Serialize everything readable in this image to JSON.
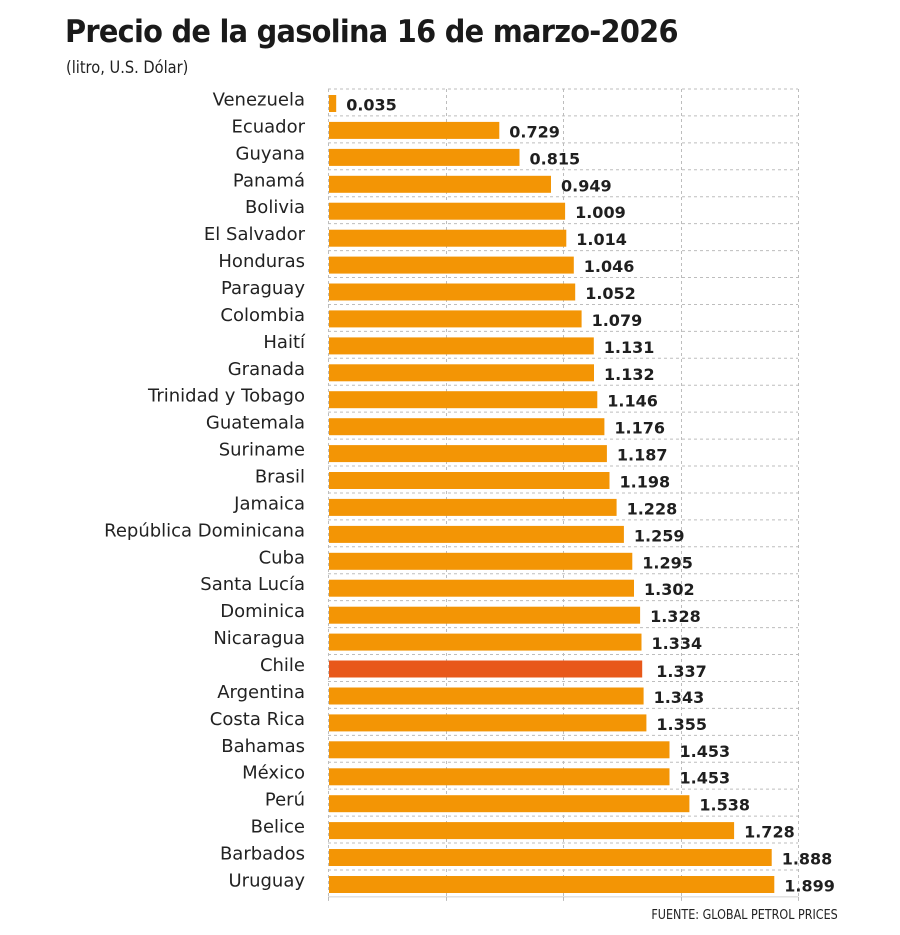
{
  "chart_data": {
    "type": "bar",
    "orientation": "horizontal",
    "title": "Precio de la gasolina 16 de marzo-2026",
    "subtitle": "(litro, U.S. Dólar)",
    "source": "FUENTE: GLOBAL PETROL PRICES",
    "xlabel": "",
    "ylabel": "",
    "xlim": [
      0,
      2.0
    ],
    "grid": true,
    "grid_step": 0.5,
    "categories": [
      "Venezuela",
      "Ecuador",
      "Guyana",
      "Panamá",
      "Bolivia",
      "El Salvador",
      "Honduras",
      "Paraguay",
      "Colombia",
      "Haití",
      "Granada",
      "Trinidad y Tobago",
      "Guatemala",
      "Suriname",
      "Brasil",
      "Jamaica",
      "República Dominicana",
      "Cuba",
      "Santa Lucía",
      "Dominica",
      "Nicaragua",
      "Chile",
      "Argentina",
      "Costa Rica",
      "Bahamas",
      "México",
      "Perú",
      "Belice",
      "Barbados",
      "Uruguay"
    ],
    "values": [
      0.035,
      0.729,
      0.815,
      0.949,
      1.009,
      1.014,
      1.046,
      1.052,
      1.079,
      1.131,
      1.132,
      1.146,
      1.176,
      1.187,
      1.198,
      1.228,
      1.259,
      1.295,
      1.302,
      1.328,
      1.334,
      1.337,
      1.343,
      1.355,
      1.453,
      1.453,
      1.538,
      1.728,
      1.888,
      1.899
    ],
    "value_labels": [
      "0.035",
      "0.729",
      "0.815",
      "0.949",
      "1.009",
      "1.014",
      "1.046",
      "1.052",
      "1.079",
      "1.131",
      "1.132",
      "1.146",
      "1.176",
      "1.187",
      "1.198",
      "1.228",
      "1.259",
      "1.295",
      "1.302",
      "1.328",
      "1.334",
      "1.337",
      "1.343",
      "1.355",
      "1.453",
      "1.453",
      "1.538",
      "1.728",
      "1.888",
      "1.899"
    ],
    "highlight": "Chile",
    "colors": {
      "bar": "#F39505",
      "highlight_bar": "#E8581A",
      "highlight_label": "#D7141E",
      "grid": "#BDBDBD"
    }
  }
}
